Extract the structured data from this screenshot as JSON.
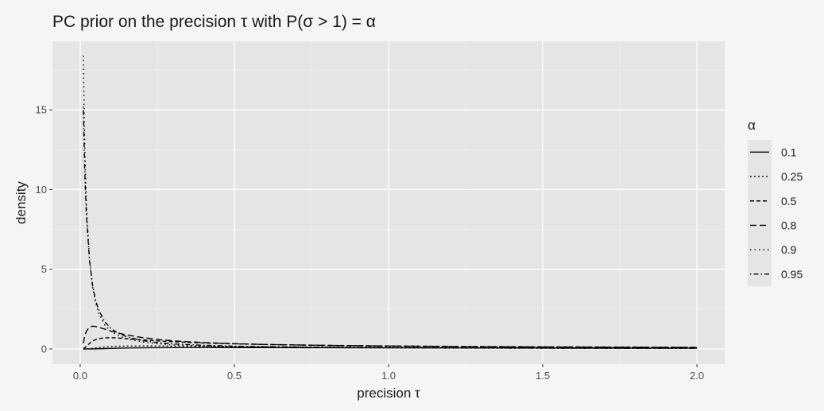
{
  "chart_data": {
    "type": "line",
    "title": "PC prior on the precision τ with P(σ > 1) = α",
    "xlabel": "precision τ",
    "ylabel": "density",
    "xlim": [
      -0.09,
      2.09
    ],
    "ylim": [
      -0.95,
      19.3
    ],
    "x_ticks": [
      0,
      0.5,
      1,
      1.5,
      2
    ],
    "x_tick_labels": [
      "0.0",
      "0.5",
      "1.0",
      "1.5",
      "2.0"
    ],
    "y_ticks": [
      0,
      5,
      10,
      15
    ],
    "y_tick_labels": [
      "0",
      "5",
      "10",
      "15"
    ],
    "grid": true,
    "legend_title": "α",
    "legend_position": "right",
    "x": [
      0.01,
      0.015,
      0.02,
      0.03,
      0.04,
      0.05,
      0.06,
      0.08,
      0.1,
      0.125,
      0.15,
      0.2,
      0.25,
      0.3,
      0.4,
      0.5,
      0.6,
      0.8,
      1.0,
      1.25,
      1.5,
      1.75,
      2.0
    ],
    "series": [
      {
        "name": "0.1",
        "dash": "solid",
        "values": [
          0.0,
          0.0,
          0.0,
          0.001,
          0.003,
          0.007,
          0.012,
          0.022,
          0.032,
          0.045,
          0.055,
          0.07,
          0.078,
          0.083,
          0.086,
          0.085,
          0.083,
          0.077,
          0.071,
          0.064,
          0.058,
          0.053,
          0.049
        ]
      },
      {
        "name": "0.25",
        "dash": "dotted",
        "values": [
          0.0,
          0.0,
          0.002,
          0.016,
          0.039,
          0.064,
          0.088,
          0.125,
          0.15,
          0.17,
          0.18,
          0.186,
          0.183,
          0.176,
          0.163,
          0.15,
          0.139,
          0.121,
          0.108,
          0.095,
          0.085,
          0.077,
          0.071
        ]
      },
      {
        "name": "0.5",
        "dash": "dashed",
        "values": [
          0.012,
          0.075,
          0.163,
          0.346,
          0.49,
          0.587,
          0.647,
          0.699,
          0.705,
          0.682,
          0.648,
          0.572,
          0.507,
          0.454,
          0.375,
          0.32,
          0.28,
          0.225,
          0.189,
          0.158,
          0.135,
          0.119,
          0.106
        ]
      },
      {
        "name": "0.8",
        "dash": "longdash",
        "values": [
          0.352,
          0.82,
          1.11,
          1.37,
          1.43,
          1.41,
          1.36,
          1.24,
          1.12,
          0.99,
          0.88,
          0.72,
          0.6,
          0.51,
          0.4,
          0.33,
          0.28,
          0.22,
          0.18,
          0.146,
          0.124,
          0.108,
          0.095
        ]
      },
      {
        "name": "0.9",
        "dash": "dotted-sparse",
        "values": [
          18.4,
          12.5,
          9.2,
          5.7,
          3.9,
          2.9,
          2.25,
          1.5,
          1.1,
          0.82,
          0.64,
          0.44,
          0.33,
          0.26,
          0.19,
          0.14,
          0.115,
          0.082,
          0.064,
          0.05,
          0.041,
          0.034,
          0.03
        ]
      },
      {
        "name": "0.95",
        "dash": "dotdash",
        "values": [
          15.2,
          11.0,
          8.4,
          5.6,
          4.0,
          3.05,
          2.45,
          1.7,
          1.28,
          0.97,
          0.77,
          0.53,
          0.4,
          0.32,
          0.23,
          0.175,
          0.14,
          0.1,
          0.078,
          0.06,
          0.049,
          0.042,
          0.036
        ]
      }
    ]
  }
}
